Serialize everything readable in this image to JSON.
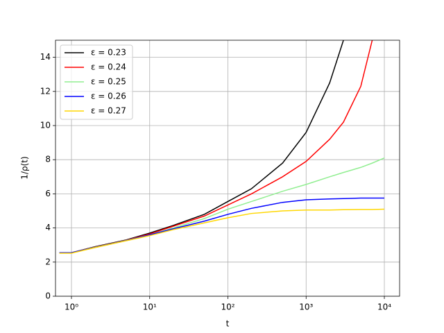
{
  "chart_data": {
    "type": "line",
    "x_label": "t",
    "y_label": "1/ρ(t)",
    "x": [
      0.7,
      1,
      2,
      5,
      10,
      20,
      50,
      100,
      200,
      500,
      1000,
      2000,
      3000,
      5000,
      7000,
      10000
    ],
    "series": [
      {
        "name": "ε = 0.23",
        "color": "#000000",
        "values": [
          2.55,
          2.55,
          2.9,
          3.3,
          3.7,
          4.15,
          4.8,
          5.55,
          6.3,
          7.8,
          9.6,
          12.5,
          15,
          null,
          null,
          null
        ]
      },
      {
        "name": "ε = 0.24",
        "color": "#ff0000",
        "values": [
          2.55,
          2.55,
          2.88,
          3.28,
          3.65,
          4.1,
          4.7,
          5.35,
          6.0,
          7.0,
          7.9,
          9.2,
          10.2,
          12.3,
          15,
          null
        ]
      },
      {
        "name": "ε = 0.25",
        "color": "#90ee90",
        "values": [
          2.55,
          2.55,
          2.87,
          3.27,
          3.6,
          4.0,
          4.55,
          5.1,
          5.55,
          6.15,
          6.55,
          7.0,
          7.25,
          7.55,
          7.8,
          8.1
        ]
      },
      {
        "name": "ε = 0.26",
        "color": "#0000ff",
        "values": [
          2.55,
          2.55,
          2.86,
          3.26,
          3.6,
          3.95,
          4.4,
          4.8,
          5.15,
          5.5,
          5.65,
          5.7,
          5.72,
          5.75,
          5.75,
          5.75
        ]
      },
      {
        "name": "ε = 0.27",
        "color": "#ffd700",
        "values": [
          2.52,
          2.52,
          2.85,
          3.25,
          3.55,
          3.9,
          4.3,
          4.6,
          4.85,
          5.0,
          5.05,
          5.05,
          5.07,
          5.08,
          5.08,
          5.1
        ]
      }
    ],
    "x_scale": "log",
    "xlim": [
      0.625,
      15670
    ],
    "ylim": [
      0,
      15
    ],
    "xticks": [
      {
        "value": 1,
        "label": "10⁰"
      },
      {
        "value": 10,
        "label": "10¹"
      },
      {
        "value": 100,
        "label": "10²"
      },
      {
        "value": 1000,
        "label": "10³"
      },
      {
        "value": 10000,
        "label": "10⁴"
      }
    ],
    "yticks": [
      0,
      2,
      4,
      6,
      8,
      10,
      12,
      14
    ],
    "grid": true,
    "legend": "upper-left"
  }
}
